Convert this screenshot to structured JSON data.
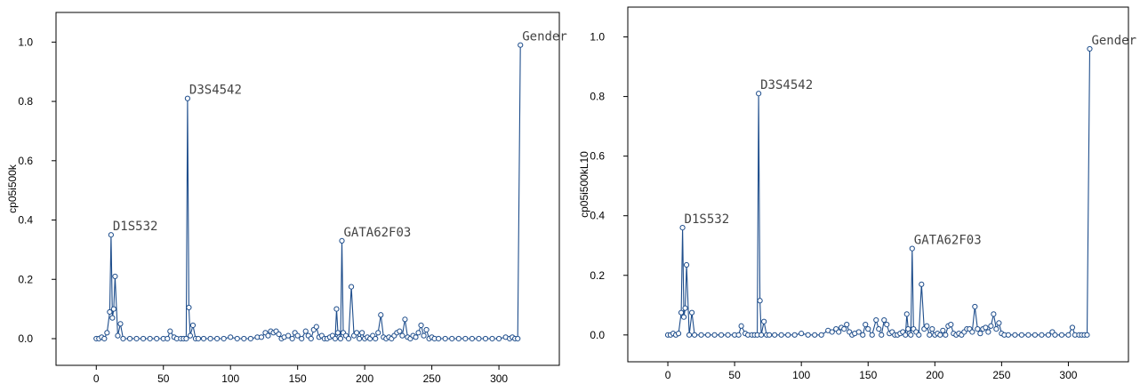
{
  "chart_data": [
    {
      "type": "line",
      "ylabel": "cp05i500k",
      "xlabel": "",
      "xlim": [
        -30,
        345
      ],
      "ylim": [
        -0.09,
        1.1
      ],
      "xticks": [
        0,
        50,
        100,
        150,
        200,
        250,
        300
      ],
      "yticks": [
        0.0,
        0.2,
        0.4,
        0.6,
        0.8,
        1.0
      ],
      "xtick_labels": [
        "0",
        "50",
        "100",
        "150",
        "200",
        "250",
        "300"
      ],
      "ytick_labels": [
        "0.0",
        "0.2",
        "0.4",
        "0.6",
        "0.8",
        "1.0"
      ],
      "grid": false,
      "annotations": [
        {
          "text": "D1S532",
          "x": 11,
          "y": 0.35
        },
        {
          "text": "D3S4542",
          "x": 68,
          "y": 0.81
        },
        {
          "text": "GATA62F03",
          "x": 183,
          "y": 0.33
        },
        {
          "text": "Gender",
          "x": 316,
          "y": 0.99
        }
      ],
      "series": [
        {
          "x": [
            0,
            2,
            4,
            6,
            8,
            10,
            11,
            12,
            13,
            14,
            16,
            18,
            20,
            25,
            30,
            35,
            40,
            45,
            50,
            53,
            55,
            58,
            60,
            63,
            65,
            67,
            68,
            69,
            70,
            72,
            74,
            76,
            80,
            85,
            90,
            95,
            100,
            105,
            110,
            115,
            120,
            123,
            126,
            128,
            130,
            132,
            134,
            136,
            138,
            140,
            143,
            146,
            148,
            150,
            153,
            156,
            158,
            160,
            162,
            164,
            166,
            168,
            170,
            172,
            174,
            176,
            178,
            179,
            180,
            181,
            182,
            183,
            184,
            186,
            188,
            190,
            192,
            194,
            196,
            198,
            200,
            202,
            204,
            206,
            208,
            210,
            212,
            214,
            216,
            218,
            220,
            222,
            224,
            226,
            228,
            230,
            232,
            234,
            236,
            238,
            240,
            242,
            244,
            246,
            248,
            250,
            252,
            255,
            260,
            265,
            270,
            275,
            280,
            285,
            290,
            295,
            300,
            305,
            308,
            310,
            312,
            314,
            316
          ],
          "values": [
            0.0,
            0.0,
            0.005,
            0.0,
            0.02,
            0.09,
            0.35,
            0.07,
            0.1,
            0.21,
            0.01,
            0.05,
            0.0,
            0.0,
            0.0,
            0.0,
            0.0,
            0.0,
            0.0,
            0.0,
            0.025,
            0.005,
            0.0,
            0.0,
            0.0,
            0.0,
            0.81,
            0.105,
            0.01,
            0.045,
            0.0,
            0.0,
            0.0,
            0.0,
            0.0,
            0.0,
            0.005,
            0.0,
            0.0,
            0.0,
            0.005,
            0.005,
            0.02,
            0.01,
            0.025,
            0.02,
            0.025,
            0.015,
            0.0,
            0.005,
            0.01,
            0.0,
            0.02,
            0.01,
            0.0,
            0.025,
            0.01,
            0.0,
            0.03,
            0.04,
            0.005,
            0.01,
            0.0,
            0.0,
            0.005,
            0.01,
            0.0,
            0.1,
            0.02,
            0.005,
            0.0,
            0.33,
            0.02,
            0.01,
            0.0,
            0.175,
            0.01,
            0.02,
            0.0,
            0.02,
            0.0,
            0.005,
            0.0,
            0.01,
            0.0,
            0.02,
            0.08,
            0.005,
            0.0,
            0.005,
            0.0,
            0.01,
            0.02,
            0.025,
            0.01,
            0.065,
            0.005,
            0.0,
            0.01,
            0.005,
            0.02,
            0.045,
            0.01,
            0.03,
            0.0,
            0.005,
            0.0,
            0.0,
            0.0,
            0.0,
            0.0,
            0.0,
            0.0,
            0.0,
            0.0,
            0.0,
            0.0,
            0.005,
            0.0,
            0.005,
            0.0,
            0.0,
            0.99
          ]
        }
      ]
    },
    {
      "type": "line",
      "ylabel": "cp05i500kL10",
      "xlabel": "",
      "xlim": [
        -30,
        345
      ],
      "ylim": [
        -0.09,
        1.1
      ],
      "xticks": [
        0,
        50,
        100,
        150,
        200,
        250,
        300
      ],
      "yticks": [
        0.0,
        0.2,
        0.4,
        0.6,
        0.8,
        1.0
      ],
      "xtick_labels": [
        "0",
        "50",
        "100",
        "150",
        "200",
        "250",
        "300"
      ],
      "ytick_labels": [
        "0.0",
        "0.2",
        "0.4",
        "0.6",
        "0.8",
        "1.0"
      ],
      "grid": false,
      "annotations": [
        {
          "text": "D1S532",
          "x": 11,
          "y": 0.36
        },
        {
          "text": "D3S4542",
          "x": 68,
          "y": 0.81
        },
        {
          "text": "GATA62F03",
          "x": 183,
          "y": 0.29
        },
        {
          "text": "Gender",
          "x": 316,
          "y": 0.96
        }
      ],
      "series": [
        {
          "x": [
            0,
            2,
            4,
            6,
            8,
            10,
            11,
            12,
            13,
            14,
            16,
            18,
            20,
            25,
            30,
            35,
            40,
            45,
            50,
            53,
            55,
            58,
            60,
            63,
            65,
            67,
            68,
            69,
            70,
            72,
            74,
            76,
            80,
            85,
            90,
            95,
            100,
            105,
            110,
            115,
            120,
            123,
            126,
            128,
            130,
            132,
            134,
            136,
            138,
            140,
            143,
            146,
            148,
            150,
            153,
            156,
            158,
            160,
            162,
            164,
            166,
            168,
            170,
            172,
            174,
            176,
            178,
            179,
            180,
            181,
            182,
            183,
            184,
            186,
            188,
            190,
            192,
            194,
            196,
            198,
            200,
            202,
            204,
            206,
            208,
            210,
            212,
            214,
            216,
            218,
            220,
            222,
            224,
            226,
            228,
            230,
            232,
            234,
            236,
            238,
            240,
            242,
            244,
            246,
            248,
            250,
            252,
            255,
            260,
            265,
            270,
            275,
            280,
            285,
            288,
            290,
            295,
            300,
            303,
            305,
            308,
            310,
            312,
            314,
            316
          ],
          "values": [
            0.0,
            0.0,
            0.005,
            0.0,
            0.005,
            0.075,
            0.36,
            0.06,
            0.09,
            0.235,
            0.0,
            0.075,
            0.0,
            0.0,
            0.0,
            0.0,
            0.0,
            0.0,
            0.0,
            0.0,
            0.03,
            0.005,
            0.0,
            0.0,
            0.0,
            0.0,
            0.81,
            0.115,
            0.0,
            0.045,
            0.0,
            0.0,
            0.0,
            0.0,
            0.0,
            0.0,
            0.005,
            0.0,
            0.0,
            0.0,
            0.015,
            0.01,
            0.02,
            0.01,
            0.025,
            0.02,
            0.035,
            0.01,
            0.0,
            0.005,
            0.01,
            0.0,
            0.035,
            0.02,
            0.0,
            0.05,
            0.02,
            0.0,
            0.05,
            0.035,
            0.005,
            0.01,
            0.0,
            0.0,
            0.005,
            0.01,
            0.0,
            0.07,
            0.02,
            0.005,
            0.0,
            0.29,
            0.02,
            0.01,
            0.0,
            0.17,
            0.02,
            0.03,
            0.0,
            0.02,
            0.0,
            0.005,
            0.0,
            0.015,
            0.0,
            0.03,
            0.035,
            0.005,
            0.0,
            0.005,
            0.0,
            0.01,
            0.02,
            0.02,
            0.01,
            0.095,
            0.02,
            0.005,
            0.02,
            0.025,
            0.01,
            0.03,
            0.07,
            0.02,
            0.04,
            0.005,
            0.0,
            0.0,
            0.0,
            0.0,
            0.0,
            0.0,
            0.0,
            0.0,
            0.01,
            0.0,
            0.0,
            0.0,
            0.025,
            0.0,
            0.0,
            0.0,
            0.0,
            0.0,
            0.96
          ]
        }
      ]
    }
  ]
}
